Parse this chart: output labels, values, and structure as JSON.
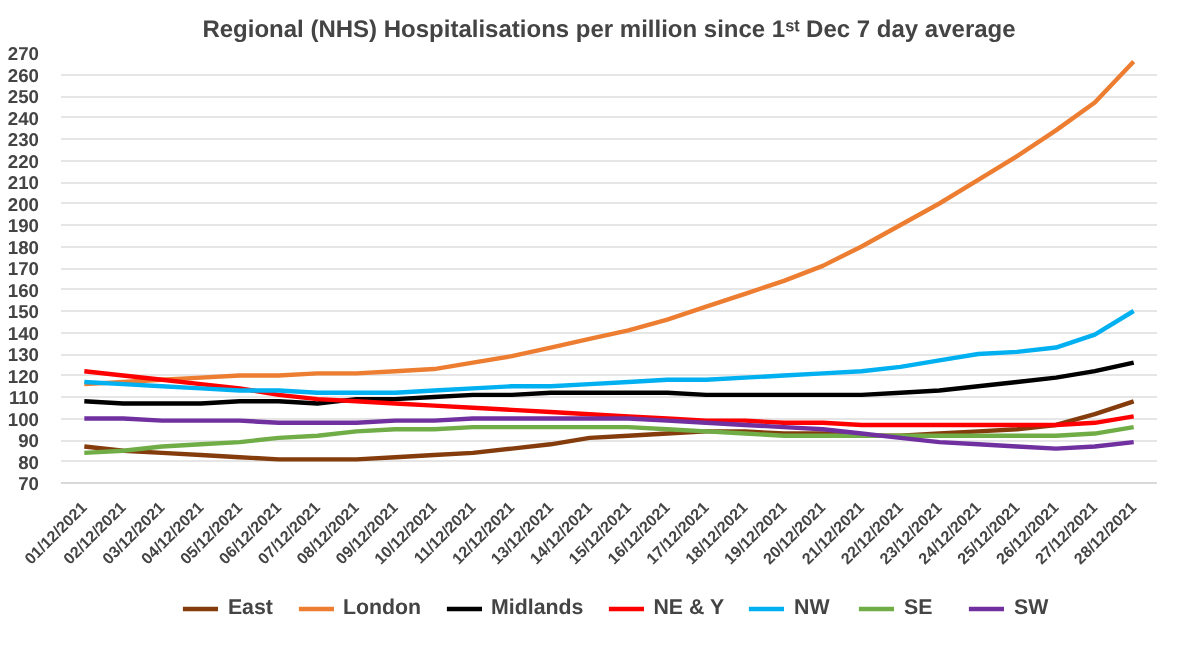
{
  "chart_data": {
    "type": "line",
    "title": "Regional (NHS) Hospitalisations per million since 1ˢᵗ Dec 7 day average",
    "categories": [
      "01/12/2021",
      "02/12/2021",
      "03/12/2021",
      "04/12/2021",
      "05/12/2021",
      "06/12/2021",
      "07/12/2021",
      "08/12/2021",
      "09/12/2021",
      "10/12/2021",
      "11/12/2021",
      "12/12/2021",
      "13/12/2021",
      "14/12/2021",
      "15/12/2021",
      "16/12/2021",
      "17/12/2021",
      "18/12/2021",
      "19/12/2021",
      "20/12/2021",
      "21/12/2021",
      "22/12/2021",
      "23/12/2021",
      "24/12/2021",
      "25/12/2021",
      "26/12/2021",
      "27/12/2021",
      "28/12/2021"
    ],
    "series": [
      {
        "name": "East",
        "color": "#843c0c",
        "values": [
          87,
          85,
          84,
          83,
          82,
          81,
          81,
          81,
          82,
          83,
          84,
          86,
          88,
          91,
          92,
          93,
          94,
          94,
          93,
          93,
          92,
          92,
          93,
          94,
          95,
          97,
          102,
          108
        ]
      },
      {
        "name": "London",
        "color": "#ed7d31",
        "values": [
          116,
          117,
          118,
          119,
          120,
          120,
          121,
          121,
          122,
          123,
          126,
          129,
          133,
          137,
          141,
          146,
          152,
          158,
          164,
          171,
          180,
          190,
          200,
          211,
          222,
          234,
          247,
          266
        ]
      },
      {
        "name": "Midlands",
        "color": "#000000",
        "values": [
          108,
          107,
          107,
          107,
          108,
          108,
          107,
          109,
          109,
          110,
          111,
          111,
          112,
          112,
          112,
          112,
          111,
          111,
          111,
          111,
          111,
          112,
          113,
          115,
          117,
          119,
          122,
          126
        ]
      },
      {
        "name": "NE & Y",
        "color": "#ff0000",
        "values": [
          122,
          120,
          118,
          116,
          114,
          111,
          109,
          108,
          107,
          106,
          105,
          104,
          103,
          102,
          101,
          100,
          99,
          99,
          98,
          98,
          97,
          97,
          97,
          97,
          97,
          97,
          98,
          101
        ]
      },
      {
        "name": "NW",
        "color": "#00b0f0",
        "values": [
          117,
          116,
          115,
          114,
          113,
          113,
          112,
          112,
          112,
          113,
          114,
          115,
          115,
          116,
          117,
          118,
          118,
          119,
          120,
          121,
          122,
          124,
          127,
          130,
          131,
          133,
          139,
          150
        ]
      },
      {
        "name": "SE",
        "color": "#70ad47",
        "values": [
          84,
          85,
          87,
          88,
          89,
          91,
          92,
          94,
          95,
          95,
          96,
          96,
          96,
          96,
          96,
          95,
          94,
          93,
          92,
          92,
          92,
          92,
          92,
          92,
          92,
          92,
          93,
          96
        ]
      },
      {
        "name": "SW",
        "color": "#7030a0",
        "values": [
          100,
          100,
          99,
          99,
          99,
          98,
          98,
          98,
          99,
          99,
          100,
          100,
          100,
          100,
          100,
          99,
          98,
          97,
          96,
          95,
          93,
          91,
          89,
          88,
          87,
          86,
          87,
          89
        ]
      }
    ],
    "ylim": [
      70,
      270
    ],
    "yticks": [
      70,
      80,
      90,
      100,
      110,
      120,
      130,
      140,
      150,
      160,
      170,
      180,
      190,
      200,
      210,
      220,
      230,
      240,
      250,
      260,
      270
    ],
    "grid": "y",
    "legend": "bottom",
    "marker": "none",
    "line_style": "solid"
  }
}
